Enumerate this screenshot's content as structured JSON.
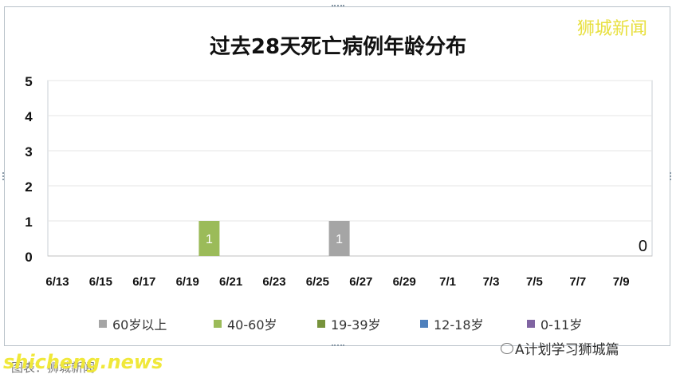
{
  "brand": "狮城新闻",
  "watermark": {
    "site": "shicheng.news",
    "source": "图表：狮城新闻",
    "account": "A计划学习狮城篇"
  },
  "chart_data": {
    "type": "bar",
    "title": "过去28天死亡病例年龄分布",
    "categories": [
      "6/13",
      "6/15",
      "6/17",
      "6/19",
      "6/21",
      "6/23",
      "6/25",
      "6/27",
      "6/29",
      "7/1",
      "7/3",
      "7/5",
      "7/7",
      "7/9"
    ],
    "ylim": [
      0,
      5
    ],
    "yticks": [
      0,
      1,
      2,
      3,
      4,
      5
    ],
    "grid": true,
    "legend_position": "bottom",
    "series": [
      {
        "name": "60岁以上",
        "color": "#a5a5a5",
        "bars": [
          {
            "x": "6/26",
            "value": 1,
            "label": "1"
          }
        ]
      },
      {
        "name": "40-60岁",
        "color": "#9bbb59",
        "bars": [
          {
            "x": "6/20",
            "value": 1,
            "label": "1"
          }
        ]
      },
      {
        "name": "19-39岁",
        "color": "#77933c",
        "bars": []
      },
      {
        "name": "12-18岁",
        "color": "#4f81bd",
        "bars": []
      },
      {
        "name": "0-11岁",
        "color": "#8064a2",
        "bars": []
      }
    ],
    "annotations": [
      {
        "x": "7/10",
        "text": "0"
      }
    ]
  }
}
